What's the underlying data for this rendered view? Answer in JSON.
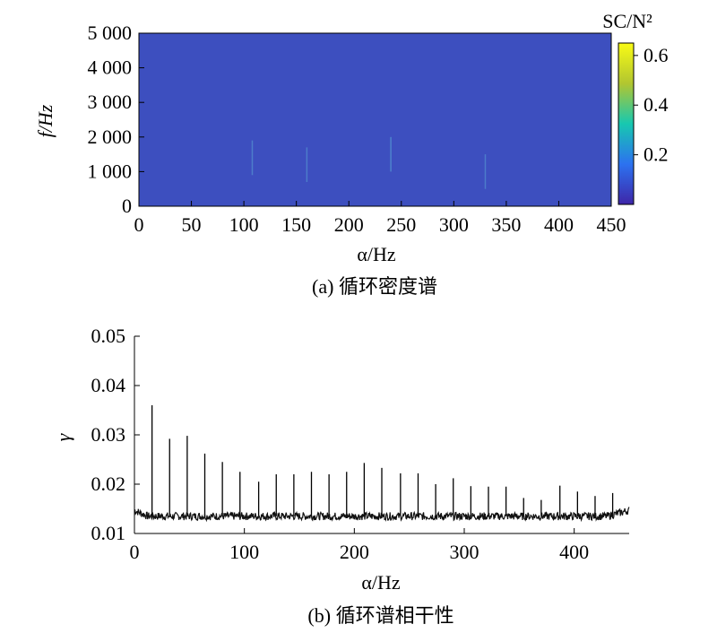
{
  "figure": {
    "panel_a_caption": "(a) 循环密度谱",
    "panel_b_caption": "(b) 循环谱相干性"
  },
  "chart_data": [
    {
      "type": "heatmap",
      "panel": "a",
      "xlabel": "α/Hz",
      "ylabel": "f/Hz",
      "colorbar_label": "SC/N²",
      "xlim": [
        0,
        450
      ],
      "ylim": [
        0,
        5000
      ],
      "x_ticks": [
        0,
        50,
        100,
        150,
        200,
        250,
        300,
        350,
        400,
        450
      ],
      "y_ticks": [
        0,
        1000,
        2000,
        3000,
        4000,
        5000
      ],
      "y_tick_labels": [
        "0",
        "1 000",
        "2 000",
        "3 000",
        "4 000",
        "5 000"
      ],
      "colorbar_range": [
        0,
        0.65
      ],
      "colorbar_ticks": [
        0.2,
        0.4,
        0.6
      ],
      "colors": {
        "background": "#3d4fbf",
        "low": "#3e26a8",
        "mid": "#17c8b0",
        "high": "#f9fb15"
      },
      "faint_streaks": [
        {
          "x": 108,
          "f": 1400,
          "value": 0.12
        },
        {
          "x": 240,
          "f": 1500,
          "value": 0.18
        },
        {
          "x": 160,
          "f": 1200,
          "value": 0.1
        },
        {
          "x": 330,
          "f": 1000,
          "value": 0.1
        }
      ]
    },
    {
      "type": "line",
      "panel": "b",
      "xlabel": "α/Hz",
      "ylabel": "γ",
      "xlim": [
        0,
        450
      ],
      "ylim": [
        0.01,
        0.05
      ],
      "x_ticks": [
        0,
        100,
        200,
        300,
        400
      ],
      "y_ticks": [
        0.01,
        0.02,
        0.03,
        0.04,
        0.05
      ],
      "y_tick_labels": [
        "0.01",
        "0.02",
        "0.03",
        "0.04",
        "0.05"
      ],
      "baseline": 0.0135,
      "peaks": [
        {
          "x": 16,
          "y": 0.036
        },
        {
          "x": 32,
          "y": 0.0292
        },
        {
          "x": 48,
          "y": 0.0298
        },
        {
          "x": 64,
          "y": 0.0262
        },
        {
          "x": 80,
          "y": 0.0245
        },
        {
          "x": 96,
          "y": 0.0225
        },
        {
          "x": 113,
          "y": 0.0205
        },
        {
          "x": 129,
          "y": 0.022
        },
        {
          "x": 145,
          "y": 0.022
        },
        {
          "x": 161,
          "y": 0.0225
        },
        {
          "x": 177,
          "y": 0.022
        },
        {
          "x": 193,
          "y": 0.0225
        },
        {
          "x": 209,
          "y": 0.0243
        },
        {
          "x": 225,
          "y": 0.0233
        },
        {
          "x": 242,
          "y": 0.0222
        },
        {
          "x": 258,
          "y": 0.0222
        },
        {
          "x": 274,
          "y": 0.02
        },
        {
          "x": 290,
          "y": 0.0212
        },
        {
          "x": 306,
          "y": 0.0196
        },
        {
          "x": 322,
          "y": 0.0195
        },
        {
          "x": 338,
          "y": 0.0195
        },
        {
          "x": 354,
          "y": 0.0172
        },
        {
          "x": 370,
          "y": 0.0168
        },
        {
          "x": 387,
          "y": 0.0197
        },
        {
          "x": 403,
          "y": 0.0185
        },
        {
          "x": 419,
          "y": 0.0176
        },
        {
          "x": 435,
          "y": 0.0182
        }
      ]
    }
  ]
}
